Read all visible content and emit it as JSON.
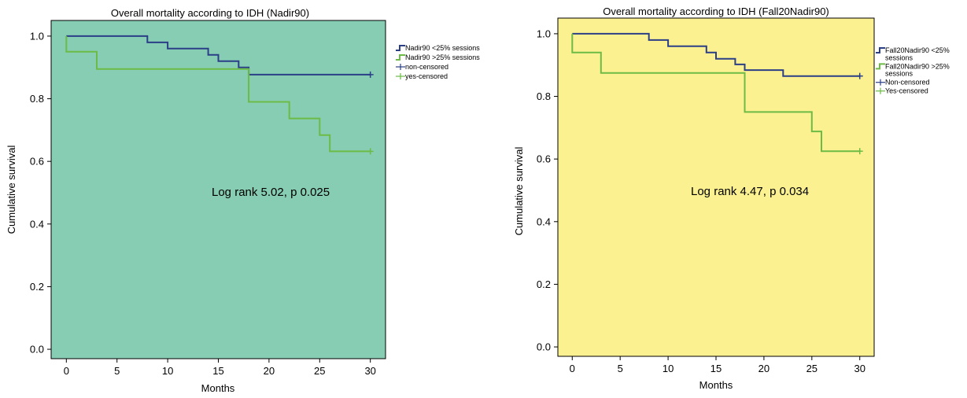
{
  "chart_data": [
    {
      "type": "line",
      "step": true,
      "title": "Overall mortality according to IDH (Nadir90)",
      "xlabel": "Months",
      "ylabel": "Cumulative survival",
      "xlim": [
        -1.5,
        31.5
      ],
      "ylim": [
        -0.03,
        1.05
      ],
      "xticks": [
        0,
        5,
        10,
        15,
        20,
        25,
        30
      ],
      "yticks": [
        0.0,
        0.2,
        0.4,
        0.6,
        0.8,
        1.0
      ],
      "xtick_labels": [
        "0",
        "5",
        "10",
        "15",
        "20",
        "25",
        "30"
      ],
      "ytick_labels": [
        "0.0",
        "0.2",
        "0.4",
        "0.6",
        "0.8",
        "1.0"
      ],
      "plot_background": "#87cdb4",
      "annotation": "Log rank 5.02, p 0.025",
      "legend_position": "right",
      "legend": [
        {
          "label": "Nadir90 <25% sessions",
          "kind": "step",
          "color": "#2b3f87"
        },
        {
          "label": "Nadir90 >25% sessions",
          "kind": "step",
          "color": "#6cbb46"
        },
        {
          "label": "non-censored",
          "kind": "cross",
          "color": "#2b3f87"
        },
        {
          "label": "yes-censored",
          "kind": "cross",
          "color": "#6cbb46"
        }
      ],
      "series": [
        {
          "name": "Nadir90 <25% sessions",
          "color": "#2b3f87",
          "x": [
            0,
            8,
            8,
            10,
            10,
            14,
            14,
            15,
            15,
            17,
            17,
            18,
            18,
            30
          ],
          "y": [
            1.0,
            1.0,
            0.98,
            0.98,
            0.96,
            0.96,
            0.94,
            0.94,
            0.92,
            0.92,
            0.9,
            0.9,
            0.877,
            0.877
          ],
          "censored": [
            [
              30,
              0.877
            ]
          ]
        },
        {
          "name": "Nadir90 >25% sessions",
          "color": "#6cbb46",
          "x": [
            0,
            0,
            3,
            3,
            18,
            18,
            22,
            22,
            25,
            25,
            26,
            26,
            30
          ],
          "y": [
            1.0,
            0.95,
            0.95,
            0.895,
            0.895,
            0.79,
            0.79,
            0.737,
            0.737,
            0.684,
            0.684,
            0.632,
            0.632
          ],
          "censored": [
            [
              30,
              0.632
            ]
          ]
        }
      ]
    },
    {
      "type": "line",
      "step": true,
      "title": "Overall mortality according to IDH (Fall20Nadir90)",
      "xlabel": "Months",
      "ylabel": "Cumulative survival",
      "xlim": [
        -1.5,
        31.5
      ],
      "ylim": [
        -0.03,
        1.05
      ],
      "xticks": [
        0,
        5,
        10,
        15,
        20,
        25,
        30
      ],
      "yticks": [
        0.0,
        0.2,
        0.4,
        0.6,
        0.8,
        1.0
      ],
      "xtick_labels": [
        "0",
        "5",
        "10",
        "15",
        "20",
        "25",
        "30"
      ],
      "ytick_labels": [
        "0.0",
        "0.2",
        "0.4",
        "0.6",
        "0.8",
        "1.0"
      ],
      "plot_background": "#fcf191",
      "annotation": "Log rank 4.47, p 0.034",
      "legend_position": "right",
      "legend": [
        {
          "label": "Fall20Nadir90 <25%",
          "label2": "sessions",
          "kind": "step",
          "color": "#2b3f87"
        },
        {
          "label": "Fall20Nadir90 >25%",
          "label2": "sessions",
          "kind": "step",
          "color": "#6cbb46"
        },
        {
          "label": "Non-censored",
          "kind": "cross",
          "color": "#2b3f87"
        },
        {
          "label": "Yes-censored",
          "kind": "cross",
          "color": "#6cbb46"
        }
      ],
      "series": [
        {
          "name": "Fall20Nadir90 <25%",
          "color": "#2b3f87",
          "x": [
            0,
            8,
            8,
            10,
            10,
            14,
            14,
            15,
            15,
            17,
            17,
            18,
            18,
            22,
            22,
            30
          ],
          "y": [
            1.0,
            1.0,
            0.98,
            0.98,
            0.96,
            0.96,
            0.94,
            0.94,
            0.92,
            0.92,
            0.902,
            0.902,
            0.884,
            0.884,
            0.865,
            0.865
          ],
          "censored": [
            [
              30,
              0.865
            ]
          ]
        },
        {
          "name": "Fall20Nadir90 >25%",
          "color": "#6cbb46",
          "x": [
            0,
            0,
            3,
            3,
            18,
            18,
            25,
            25,
            26,
            26,
            30
          ],
          "y": [
            1.0,
            0.94,
            0.94,
            0.875,
            0.875,
            0.75,
            0.75,
            0.688,
            0.688,
            0.625,
            0.625
          ],
          "censored": [
            [
              30,
              0.625
            ]
          ]
        }
      ]
    }
  ]
}
